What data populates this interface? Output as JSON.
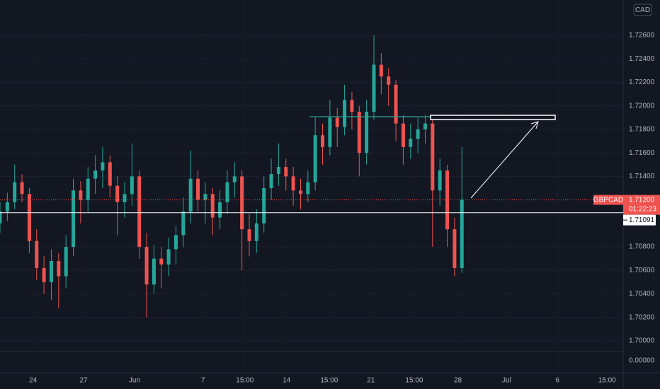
{
  "chart_data": {
    "type": "candlestick",
    "symbol": "GBPCAD",
    "currency": "CAD",
    "up_color": "#26a69a",
    "down_color": "#ef5350",
    "grid": true,
    "xlim": [
      0,
      85
    ],
    "ylim": [
      1.69711,
      1.72901
    ],
    "yticks": [
      {
        "value": 1.726,
        "label": "1.72600"
      },
      {
        "value": 1.724,
        "label": "1.72400"
      },
      {
        "value": 1.722,
        "label": "1.72200"
      },
      {
        "value": 1.72,
        "label": "1.72000"
      },
      {
        "value": 1.718,
        "label": "1.71800"
      },
      {
        "value": 1.716,
        "label": "1.71600"
      },
      {
        "value": 1.714,
        "label": "1.71400"
      },
      {
        "value": 1.708,
        "label": "1.70800"
      },
      {
        "value": 1.706,
        "label": "1.70600"
      },
      {
        "value": 1.704,
        "label": "1.70400"
      },
      {
        "value": 1.702,
        "label": "1.70200"
      },
      {
        "value": 1.7,
        "label": "1.70000"
      }
    ],
    "scale_floor_tick": {
      "value": 0,
      "label": "0.00000"
    },
    "xticks": [
      {
        "value": 4.5,
        "label": "24"
      },
      {
        "value": 11.4,
        "label": "27"
      },
      {
        "value": 18.35,
        "label": "Jun"
      },
      {
        "value": 27.7,
        "label": "7"
      },
      {
        "value": 33.4,
        "label": "15:00"
      },
      {
        "value": 39.1,
        "label": "14"
      },
      {
        "value": 44.9,
        "label": "15:00"
      },
      {
        "value": 50.6,
        "label": "21"
      },
      {
        "value": 56.5,
        "label": "15:00"
      },
      {
        "value": 62.45,
        "label": "28"
      },
      {
        "value": 69.1,
        "label": "Jul"
      },
      {
        "value": 76.05,
        "label": "6"
      },
      {
        "value": 82.8,
        "label": "15:00"
      }
    ],
    "last_price": {
      "value": 1.712,
      "label": "1.71200"
    },
    "countdown": "01:22:23",
    "level": {
      "value": 1.71091,
      "label": "1.71091"
    },
    "ohlc": [
      [
        1.71,
        1.7118,
        1.7092,
        1.711
      ],
      [
        1.711,
        1.7126,
        1.7102,
        1.7118
      ],
      [
        1.7118,
        1.715,
        1.7112,
        1.7135
      ],
      [
        1.7135,
        1.7142,
        1.7118,
        1.7125
      ],
      [
        1.7125,
        1.713,
        1.7075,
        1.7085
      ],
      [
        1.7085,
        1.7095,
        1.7052,
        1.7062
      ],
      [
        1.7062,
        1.7072,
        1.704,
        1.705
      ],
      [
        1.705,
        1.7078,
        1.7035,
        1.7068
      ],
      [
        1.7068,
        1.7075,
        1.7028,
        1.7055
      ],
      [
        1.7055,
        1.709,
        1.7045,
        1.708
      ],
      [
        1.708,
        1.7138,
        1.7072,
        1.7128
      ],
      [
        1.7128,
        1.7136,
        1.71,
        1.712
      ],
      [
        1.712,
        1.7148,
        1.711,
        1.7138
      ],
      [
        1.7138,
        1.7158,
        1.7125,
        1.7145
      ],
      [
        1.7145,
        1.7165,
        1.713,
        1.7152
      ],
      [
        1.7152,
        1.7158,
        1.7122,
        1.7132
      ],
      [
        1.7132,
        1.714,
        1.709,
        1.7118
      ],
      [
        1.7118,
        1.7135,
        1.7105,
        1.7125
      ],
      [
        1.7125,
        1.7168,
        1.7115,
        1.714
      ],
      [
        1.714,
        1.7145,
        1.707,
        1.708
      ],
      [
        1.708,
        1.7092,
        1.702,
        1.7048
      ],
      [
        1.7048,
        1.7082,
        1.704,
        1.707
      ],
      [
        1.707,
        1.708,
        1.7045,
        1.7065
      ],
      [
        1.7065,
        1.7088,
        1.7055,
        1.7078
      ],
      [
        1.7078,
        1.7098,
        1.7065,
        1.709
      ],
      [
        1.709,
        1.7122,
        1.708,
        1.711
      ],
      [
        1.711,
        1.7162,
        1.71,
        1.7138
      ],
      [
        1.7138,
        1.7145,
        1.711,
        1.712
      ],
      [
        1.712,
        1.7135,
        1.71,
        1.7125
      ],
      [
        1.7125,
        1.713,
        1.709,
        1.7105
      ],
      [
        1.7105,
        1.7128,
        1.7095,
        1.7118
      ],
      [
        1.7118,
        1.7145,
        1.7108,
        1.7135
      ],
      [
        1.7135,
        1.7152,
        1.7122,
        1.714
      ],
      [
        1.714,
        1.7145,
        1.706,
        1.7095
      ],
      [
        1.7095,
        1.7108,
        1.7072,
        1.7085
      ],
      [
        1.7085,
        1.7112,
        1.7075,
        1.71
      ],
      [
        1.71,
        1.714,
        1.7092,
        1.713
      ],
      [
        1.713,
        1.7155,
        1.712,
        1.7142
      ],
      [
        1.7142,
        1.7168,
        1.7132,
        1.7148
      ],
      [
        1.7148,
        1.7155,
        1.7128,
        1.714
      ],
      [
        1.714,
        1.7148,
        1.7115,
        1.7128
      ],
      [
        1.7128,
        1.7138,
        1.7112,
        1.7125
      ],
      [
        1.7125,
        1.7145,
        1.7118,
        1.7135
      ],
      [
        1.7135,
        1.719,
        1.7128,
        1.7175
      ],
      [
        1.7175,
        1.7185,
        1.715,
        1.7165
      ],
      [
        1.7165,
        1.7205,
        1.7158,
        1.719
      ],
      [
        1.719,
        1.7198,
        1.7165,
        1.7182
      ],
      [
        1.7182,
        1.7218,
        1.7175,
        1.7205
      ],
      [
        1.7205,
        1.7212,
        1.718,
        1.7195
      ],
      [
        1.7195,
        1.72,
        1.714,
        1.716
      ],
      [
        1.716,
        1.7205,
        1.715,
        1.7195
      ],
      [
        1.7195,
        1.726,
        1.7188,
        1.7235
      ],
      [
        1.7235,
        1.7245,
        1.721,
        1.7225
      ],
      [
        1.7225,
        1.7232,
        1.72,
        1.7218
      ],
      [
        1.7218,
        1.7222,
        1.717,
        1.7185
      ],
      [
        1.7185,
        1.7192,
        1.715,
        1.7165
      ],
      [
        1.7165,
        1.7185,
        1.7155,
        1.7172
      ],
      [
        1.7172,
        1.719,
        1.716,
        1.718
      ],
      [
        1.718,
        1.7192,
        1.7168,
        1.7185
      ],
      [
        1.7185,
        1.7188,
        1.708,
        1.7128
      ],
      [
        1.7128,
        1.7155,
        1.7115,
        1.7145
      ],
      [
        1.7145,
        1.715,
        1.708,
        1.7095
      ],
      [
        1.7095,
        1.7105,
        1.7055,
        1.7062
      ],
      [
        1.7062,
        1.7165,
        1.7058,
        1.712
      ]
    ]
  }
}
